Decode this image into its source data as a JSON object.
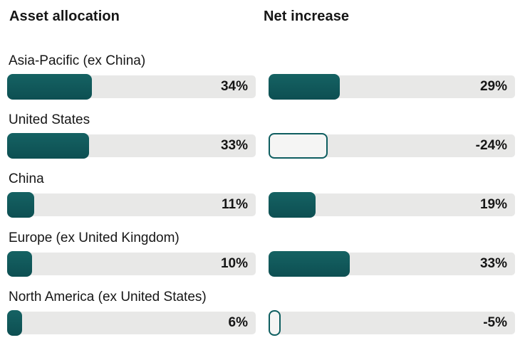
{
  "colors": {
    "bar_fill_top": "#156263",
    "bar_fill_bottom": "#0d4f52",
    "negative_bar_outline": "#0e5e60",
    "negative_bar_fill": "#f5f5f4",
    "track": "#e8e8e7",
    "text": "#161616"
  },
  "chart_data": {
    "type": "bar",
    "orientation": "horizontal",
    "title": "",
    "categories": [
      "Asia-Pacific (ex China)",
      "United States",
      "China",
      "Europe (ex United Kingdom)",
      "North America (ex United States)"
    ],
    "series": [
      {
        "name": "Asset allocation",
        "values": [
          34,
          33,
          11,
          10,
          6
        ],
        "labels": [
          "34%",
          "33%",
          "11%",
          "10%",
          "6%"
        ]
      },
      {
        "name": "Net increase",
        "values": [
          29,
          -24,
          19,
          33,
          -5
        ],
        "labels": [
          "29%",
          "-24%",
          "19%",
          "33%",
          "-5%"
        ]
      }
    ],
    "unit": "%",
    "xlim": [
      0,
      100
    ],
    "grid": false,
    "legend_position": "column-headers",
    "negative_style": "outlined-hollow-bar"
  }
}
